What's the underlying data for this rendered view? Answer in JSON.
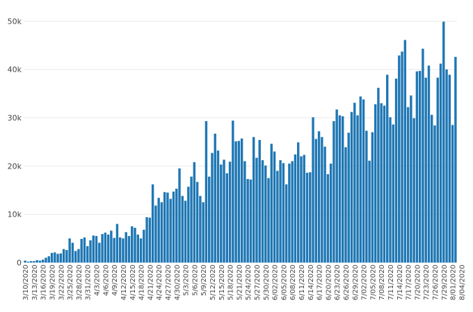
{
  "chart_data": {
    "type": "bar",
    "x_start": "3/10/2020",
    "x_end": "8/04/2020",
    "x_tick_labels": [
      "3/10/2020",
      "3/13/2020",
      "3/16/2020",
      "3/19/2020",
      "3/22/2020",
      "3/25/2020",
      "3/28/2020",
      "3/31/2020",
      "4/3/2020",
      "4/6/2020",
      "4/9/2020",
      "4/12/2020",
      "4/15/2020",
      "4/18/2020",
      "4/21/2020",
      "4/24/2020",
      "4/27/2020",
      "4/30/2020",
      "5/3/2020",
      "5/6/2020",
      "5/9/2020",
      "5/12/2020",
      "5/15/2020",
      "5/18/2020",
      "5/21/2020",
      "5/24/2020",
      "5/27/2020",
      "5/30/2020",
      "6/02/2020",
      "6/05/2020",
      "6/08/2020",
      "6/11/2020",
      "6/14/2020",
      "6/17/2020",
      "6/20/2020",
      "6/23/2020",
      "6/26/2020",
      "6/29/2020",
      "7/02/2020",
      "7/05/2020",
      "7/08/2020",
      "7/11/2020",
      "7/14/2020",
      "7/17/2020",
      "7/20/2020",
      "7/23/2020",
      "7/26/2020",
      "7/29/2020",
      "8/01/2020",
      "8/04/2020"
    ],
    "y_tick_labels": [
      "0",
      "10k",
      "20k",
      "30k",
      "40k",
      "50k"
    ],
    "y_ticks": [
      0,
      10000,
      20000,
      30000,
      40000,
      50000
    ],
    "ylim": [
      0,
      51500
    ],
    "grid": true,
    "values": [
      400,
      200,
      300,
      300,
      500,
      400,
      600,
      1000,
      1300,
      2000,
      2100,
      1800,
      1900,
      2800,
      2600,
      5000,
      4100,
      2400,
      2800,
      4900,
      5200,
      3400,
      4600,
      5600,
      5500,
      4100,
      5900,
      6200,
      5800,
      6600,
      5100,
      8000,
      5200,
      5000,
      6300,
      5500,
      7500,
      7200,
      5800,
      5000,
      6800,
      9400,
      9300,
      16200,
      11800,
      13400,
      12500,
      14600,
      14500,
      13200,
      14700,
      15300,
      19500,
      13800,
      12800,
      15700,
      17800,
      20800,
      16700,
      13800,
      12500,
      29300,
      17800,
      22700,
      26700,
      23200,
      20300,
      21300,
      18500,
      20900,
      29400,
      25100,
      25200,
      25700,
      21000,
      17300,
      17200,
      26000,
      21700,
      25400,
      21200,
      20100,
      17500,
      24600,
      23000,
      19000,
      21200,
      20600,
      16200,
      20500,
      21000,
      22400,
      24900,
      22000,
      22300,
      18600,
      18700,
      30100,
      25600,
      27200,
      26000,
      24000,
      18300,
      20500,
      29300,
      31700,
      30500,
      30300,
      23900,
      26900,
      31200,
      33100,
      30500,
      34400,
      33800,
      27300,
      21100,
      27000,
      32800,
      36200,
      33000,
      32500,
      38900,
      30100,
      28600,
      38100,
      42900,
      43700,
      46100,
      32200,
      34600,
      29900,
      39600,
      39700,
      44300,
      38300,
      40800,
      30600,
      28400,
      38300,
      41200,
      49900,
      40000,
      38900,
      28500,
      42600
    ]
  }
}
